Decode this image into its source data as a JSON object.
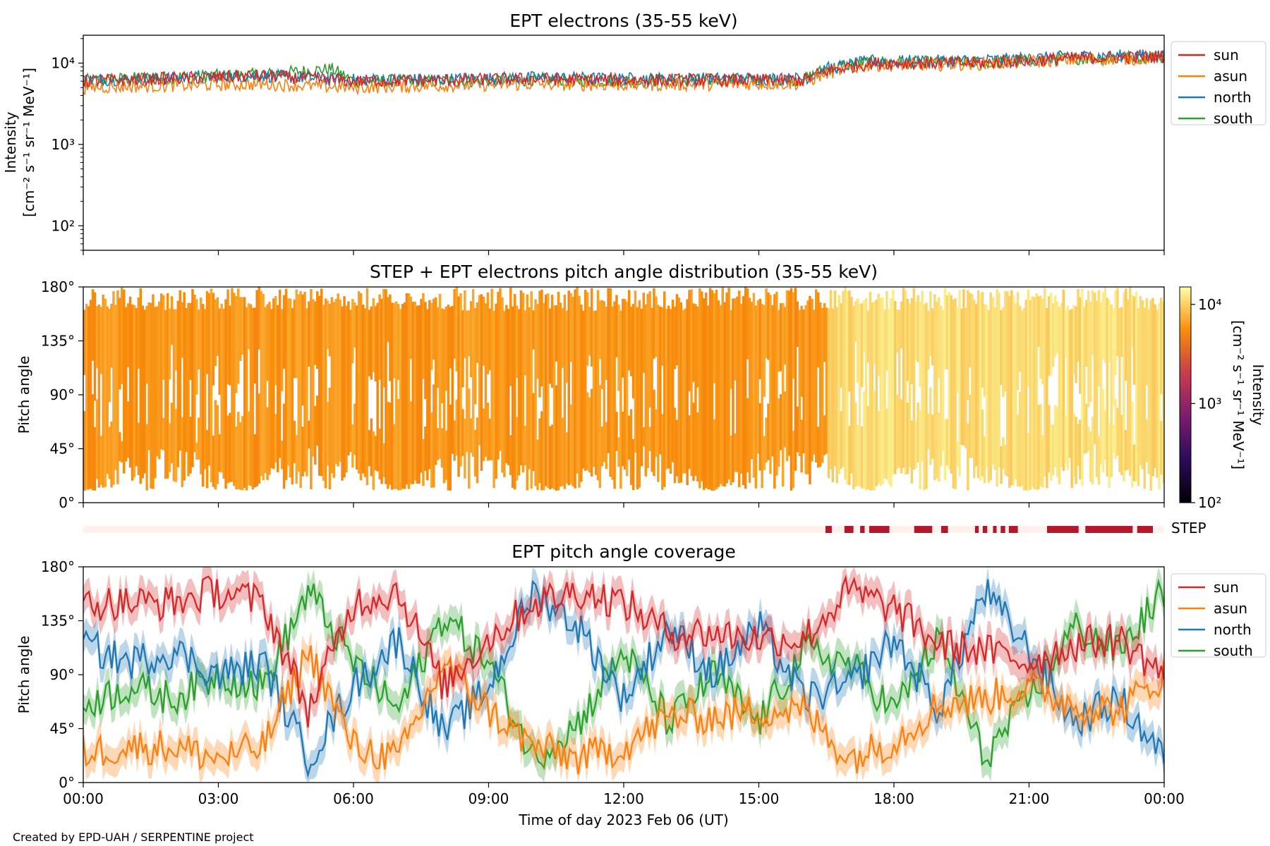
{
  "credit": "Created by EPD-UAH / SERPENTINE project",
  "xlabel": "Time of day 2023 Feb 06 (UT)",
  "xticks": [
    "00:00",
    "03:00",
    "06:00",
    "09:00",
    "12:00",
    "15:00",
    "18:00",
    "21:00",
    "00:00"
  ],
  "colors": {
    "sun": "#d62728",
    "asun": "#ff7f0e",
    "north": "#1f77b4",
    "south": "#2ca02c",
    "step": "#b2182b"
  },
  "chart_data": [
    {
      "type": "line",
      "title": "EPT electrons (35-55 keV)",
      "ylabel_line1": "Intensity",
      "ylabel_line2": "[cm⁻² s⁻¹ sr⁻¹ MeV⁻¹]",
      "yscale": "log",
      "ylim": [
        50,
        22000
      ],
      "yticks": [
        {
          "v": 100,
          "label": "10²"
        },
        {
          "v": 1000,
          "label": "10³"
        },
        {
          "v": 10000,
          "label": "10⁴"
        }
      ],
      "xlim_hours": [
        0,
        24
      ],
      "legend": [
        "sun",
        "asun",
        "north",
        "south"
      ],
      "legend_position": "outside-right",
      "series": [
        {
          "name": "sun",
          "x_hours": [
            0,
            2,
            4,
            6,
            8,
            10,
            12,
            14,
            16,
            16.5,
            17.5,
            18.5,
            20,
            22,
            24
          ],
          "y": [
            6000,
            6500,
            7000,
            6000,
            6200,
            6400,
            6200,
            6200,
            6200,
            8000,
            10000,
            10000,
            10000,
            11500,
            12000
          ]
        },
        {
          "name": "asun",
          "x_hours": [
            0,
            2,
            4,
            6,
            8,
            10,
            12,
            14,
            16,
            16.5,
            17.5,
            18.5,
            20,
            22,
            24
          ],
          "y": [
            5000,
            5300,
            5500,
            5000,
            5300,
            5500,
            5400,
            5500,
            5600,
            7500,
            9500,
            9500,
            9800,
            11000,
            11500
          ]
        },
        {
          "name": "north",
          "x_hours": [
            0,
            2,
            4,
            6,
            8,
            10,
            12,
            14,
            16,
            16.5,
            17.5,
            18.5,
            20,
            22,
            24
          ],
          "y": [
            6200,
            6500,
            7000,
            6200,
            6300,
            6600,
            6400,
            6400,
            6400,
            8500,
            10500,
            10500,
            10800,
            12000,
            12500
          ]
        },
        {
          "name": "south",
          "x_hours": [
            0,
            2,
            4,
            5.5,
            6,
            8,
            10,
            12,
            14,
            16,
            16.5,
            17.5,
            18.5,
            20,
            22,
            24
          ],
          "y": [
            6100,
            6800,
            7200,
            8500,
            6000,
            6000,
            6200,
            6100,
            6200,
            6200,
            8500,
            10500,
            10200,
            10200,
            11500,
            12000
          ]
        }
      ]
    },
    {
      "type": "heatmap",
      "title": "STEP + EPT electrons pitch angle distribution (35-55 keV)",
      "ylabel": "Pitch angle",
      "ylim": [
        0,
        180
      ],
      "yticks": [
        "0°",
        "45°",
        "90°",
        "135°",
        "180°"
      ],
      "colorbar_label": "Intensity",
      "colorbar_units": "[cm⁻² s⁻¹ sr⁻¹ MeV⁻¹]",
      "colorbar_scale": "log",
      "colorbar_range": [
        100,
        15000
      ],
      "colorbar_ticks": [
        "10²",
        "10³",
        "10⁴"
      ],
      "regimes": [
        {
          "x_hours": [
            0,
            16.5
          ],
          "intensity": 6000
        },
        {
          "x_hours": [
            16.5,
            24
          ],
          "intensity": 11000
        }
      ]
    },
    {
      "type": "bar",
      "label": "STEP",
      "step_coverage_hours": [
        [
          16.48,
          16.62
        ],
        [
          16.9,
          17.1
        ],
        [
          17.25,
          17.35
        ],
        [
          17.45,
          17.9
        ],
        [
          18.45,
          18.85
        ],
        [
          19.05,
          19.2
        ],
        [
          19.8,
          19.88
        ],
        [
          19.97,
          20.07
        ],
        [
          20.2,
          20.28
        ],
        [
          20.37,
          20.47
        ],
        [
          20.55,
          20.75
        ],
        [
          21.4,
          22.1
        ],
        [
          22.25,
          23.3
        ],
        [
          23.4,
          23.75
        ]
      ]
    },
    {
      "type": "line",
      "title": "EPT pitch angle coverage",
      "ylabel": "Pitch angle",
      "ylim": [
        0,
        180
      ],
      "yticks": [
        "0°",
        "45°",
        "90°",
        "135°",
        "180°"
      ],
      "xlim_hours": [
        0,
        24
      ],
      "legend": [
        "sun",
        "asun",
        "north",
        "south"
      ],
      "legend_position": "outside-right",
      "series": [
        {
          "name": "sun",
          "x_hours": [
            0,
            1,
            2,
            3,
            4,
            5,
            6,
            7,
            8,
            9,
            10,
            11,
            12,
            13,
            14,
            15,
            16,
            17,
            18,
            19,
            20,
            21,
            22,
            23,
            24
          ],
          "y": [
            150,
            150,
            150,
            160,
            150,
            60,
            150,
            160,
            80,
            120,
            150,
            160,
            150,
            125,
            125,
            120,
            120,
            160,
            145,
            115,
            110,
            100,
            115,
            120,
            90
          ]
        },
        {
          "name": "asun",
          "x_hours": [
            0,
            1,
            2,
            3,
            4,
            5,
            6,
            7,
            8,
            9,
            10,
            11,
            12,
            13,
            14,
            15,
            16,
            17,
            18,
            19,
            20,
            21,
            22,
            23,
            24
          ],
          "y": [
            25,
            30,
            30,
            20,
            30,
            110,
            30,
            20,
            100,
            60,
            30,
            20,
            30,
            55,
            55,
            60,
            60,
            20,
            35,
            65,
            70,
            80,
            65,
            60,
            90
          ]
        },
        {
          "name": "north",
          "x_hours": [
            0,
            1,
            2,
            3,
            4,
            5,
            6,
            7,
            8,
            9,
            10,
            11,
            12,
            13,
            14,
            15,
            16,
            17,
            18,
            19,
            20,
            21,
            22,
            23,
            24
          ],
          "y": [
            115,
            100,
            110,
            90,
            100,
            20,
            80,
            120,
            40,
            80,
            160,
            130,
            70,
            130,
            90,
            130,
            70,
            80,
            120,
            60,
            160,
            110,
            50,
            70,
            20
          ]
        },
        {
          "name": "south",
          "x_hours": [
            0,
            1,
            2,
            3,
            4,
            5,
            6,
            7,
            8,
            9,
            10,
            11,
            12,
            13,
            14,
            15,
            16,
            17,
            18,
            19,
            20,
            21,
            22,
            23,
            24
          ],
          "y": [
            65,
            80,
            70,
            90,
            80,
            160,
            100,
            60,
            140,
            100,
            20,
            50,
            110,
            50,
            90,
            50,
            110,
            100,
            60,
            120,
            20,
            70,
            130,
            110,
            160
          ]
        }
      ]
    }
  ]
}
